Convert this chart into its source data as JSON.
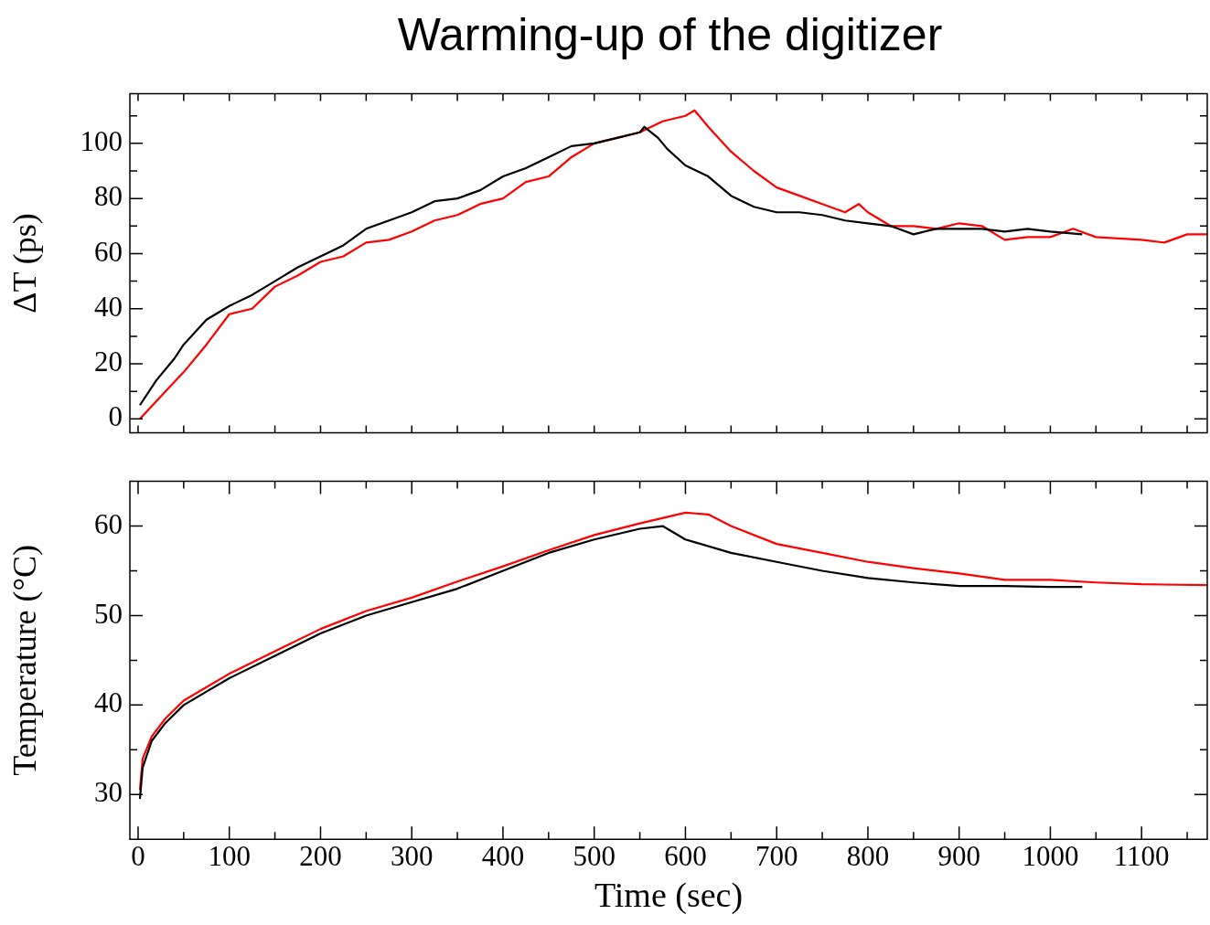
{
  "chart_data": [
    {
      "type": "line",
      "title": "Warming-up of the digitizer",
      "ylabel": "ΔT (ps)",
      "xlim": [
        -9,
        1172
      ],
      "ylim": [
        -5,
        118
      ],
      "xticks": [
        {
          "value": 0,
          "label": null
        },
        {
          "value": 50,
          "label": null
        },
        {
          "value": 100,
          "label": null
        },
        {
          "value": 150,
          "label": null
        },
        {
          "value": 200,
          "label": null
        },
        {
          "value": 250,
          "label": null
        },
        {
          "value": 300,
          "label": null
        },
        {
          "value": 350,
          "label": null
        },
        {
          "value": 400,
          "label": null
        },
        {
          "value": 450,
          "label": null
        },
        {
          "value": 500,
          "label": null
        },
        {
          "value": 550,
          "label": null
        },
        {
          "value": 600,
          "label": null
        },
        {
          "value": 650,
          "label": null
        },
        {
          "value": 700,
          "label": null
        },
        {
          "value": 750,
          "label": null
        },
        {
          "value": 800,
          "label": null
        },
        {
          "value": 850,
          "label": null
        },
        {
          "value": 900,
          "label": null
        },
        {
          "value": 950,
          "label": null
        },
        {
          "value": 1000,
          "label": null
        },
        {
          "value": 1050,
          "label": null
        },
        {
          "value": 1100,
          "label": null
        },
        {
          "value": 1150,
          "label": null
        }
      ],
      "yticks": [
        0,
        {
          "value": 10,
          "label": null
        },
        20,
        {
          "value": 30,
          "label": null
        },
        40,
        {
          "value": 50,
          "label": null
        },
        60,
        {
          "value": 70,
          "label": null
        },
        80,
        {
          "value": 90,
          "label": null
        },
        100,
        {
          "value": 110,
          "label": null
        }
      ],
      "tick_labels": "y",
      "grid": false,
      "legend": false,
      "series": [
        {
          "color": "#000000",
          "x": [
            2,
            20,
            40,
            50,
            75,
            100,
            125,
            150,
            175,
            200,
            225,
            250,
            275,
            300,
            325,
            350,
            375,
            400,
            425,
            450,
            475,
            500,
            525,
            550,
            555,
            570,
            580,
            600,
            625,
            650,
            675,
            700,
            725,
            750,
            775,
            800,
            825,
            850,
            875,
            900,
            925,
            950,
            975,
            1000,
            1035
          ],
          "values": [
            5,
            14,
            22,
            27,
            36,
            41,
            45,
            50,
            55,
            59,
            63,
            69,
            72,
            75,
            79,
            80,
            83,
            88,
            91,
            95,
            99,
            100,
            102,
            104,
            106,
            102,
            98,
            92,
            88,
            81,
            77,
            75,
            75,
            74,
            72,
            71,
            70,
            67,
            69,
            69,
            69,
            68,
            69,
            68,
            67
          ]
        },
        {
          "color": "#ff0000",
          "x": [
            2,
            30,
            50,
            75,
            100,
            125,
            150,
            175,
            200,
            225,
            250,
            275,
            300,
            325,
            350,
            375,
            400,
            425,
            450,
            475,
            500,
            525,
            550,
            575,
            600,
            610,
            625,
            650,
            675,
            700,
            725,
            750,
            775,
            790,
            800,
            825,
            850,
            875,
            900,
            925,
            950,
            975,
            1000,
            1025,
            1050,
            1100,
            1125,
            1150,
            1172
          ],
          "values": [
            0,
            10,
            17,
            27,
            38,
            40,
            48,
            52,
            57,
            59,
            64,
            65,
            68,
            72,
            74,
            78,
            80,
            86,
            88,
            95,
            100,
            102,
            104,
            108,
            110,
            112,
            106,
            97,
            90,
            84,
            81,
            78,
            75,
            78,
            75,
            70,
            70,
            69,
            71,
            70,
            65,
            66,
            66,
            69,
            66,
            65,
            64,
            67,
            67
          ]
        }
      ]
    },
    {
      "type": "line",
      "xlabel": "Time (sec)",
      "ylabel": "Temperature (°C)",
      "xlim": [
        -9,
        1172
      ],
      "ylim": [
        25,
        65
      ],
      "xticks": [
        0,
        {
          "value": 50,
          "label": null
        },
        100,
        {
          "value": 150,
          "label": null
        },
        200,
        {
          "value": 250,
          "label": null
        },
        300,
        {
          "value": 350,
          "label": null
        },
        400,
        {
          "value": 450,
          "label": null
        },
        500,
        {
          "value": 550,
          "label": null
        },
        600,
        {
          "value": 650,
          "label": null
        },
        700,
        {
          "value": 750,
          "label": null
        },
        800,
        {
          "value": 850,
          "label": null
        },
        900,
        {
          "value": 950,
          "label": null
        },
        1000,
        {
          "value": 1050,
          "label": null
        },
        1100,
        {
          "value": 1150,
          "label": null
        }
      ],
      "yticks": [
        30,
        {
          "value": 35,
          "label": null
        },
        40,
        {
          "value": 45,
          "label": null
        },
        50,
        {
          "value": 55,
          "label": null
        },
        60
      ],
      "grid": false,
      "legend": false,
      "series": [
        {
          "color": "#000000",
          "x": [
            2,
            5,
            15,
            30,
            50,
            75,
            100,
            150,
            200,
            250,
            300,
            350,
            400,
            450,
            500,
            550,
            575,
            600,
            650,
            700,
            750,
            800,
            850,
            900,
            950,
            1000,
            1035
          ],
          "values": [
            29.5,
            33,
            36,
            38,
            40,
            41.5,
            43,
            45.5,
            48,
            50,
            51.5,
            53,
            55,
            57,
            58.5,
            59.7,
            60,
            58.5,
            57,
            56,
            55,
            54.2,
            53.7,
            53.3,
            53.3,
            53.2,
            53.2
          ]
        },
        {
          "color": "#ff0000",
          "x": [
            2,
            5,
            15,
            30,
            50,
            75,
            100,
            150,
            200,
            250,
            300,
            350,
            400,
            450,
            500,
            550,
            600,
            625,
            650,
            700,
            750,
            800,
            850,
            900,
            950,
            1000,
            1050,
            1100,
            1172
          ],
          "values": [
            30.5,
            34,
            36.5,
            38.5,
            40.5,
            42,
            43.5,
            46,
            48.5,
            50.5,
            52,
            53.8,
            55.5,
            57.3,
            59,
            60.3,
            61.5,
            61.3,
            60,
            58,
            57,
            56,
            55.3,
            54.7,
            54,
            54,
            53.7,
            53.5,
            53.4
          ]
        }
      ]
    }
  ]
}
